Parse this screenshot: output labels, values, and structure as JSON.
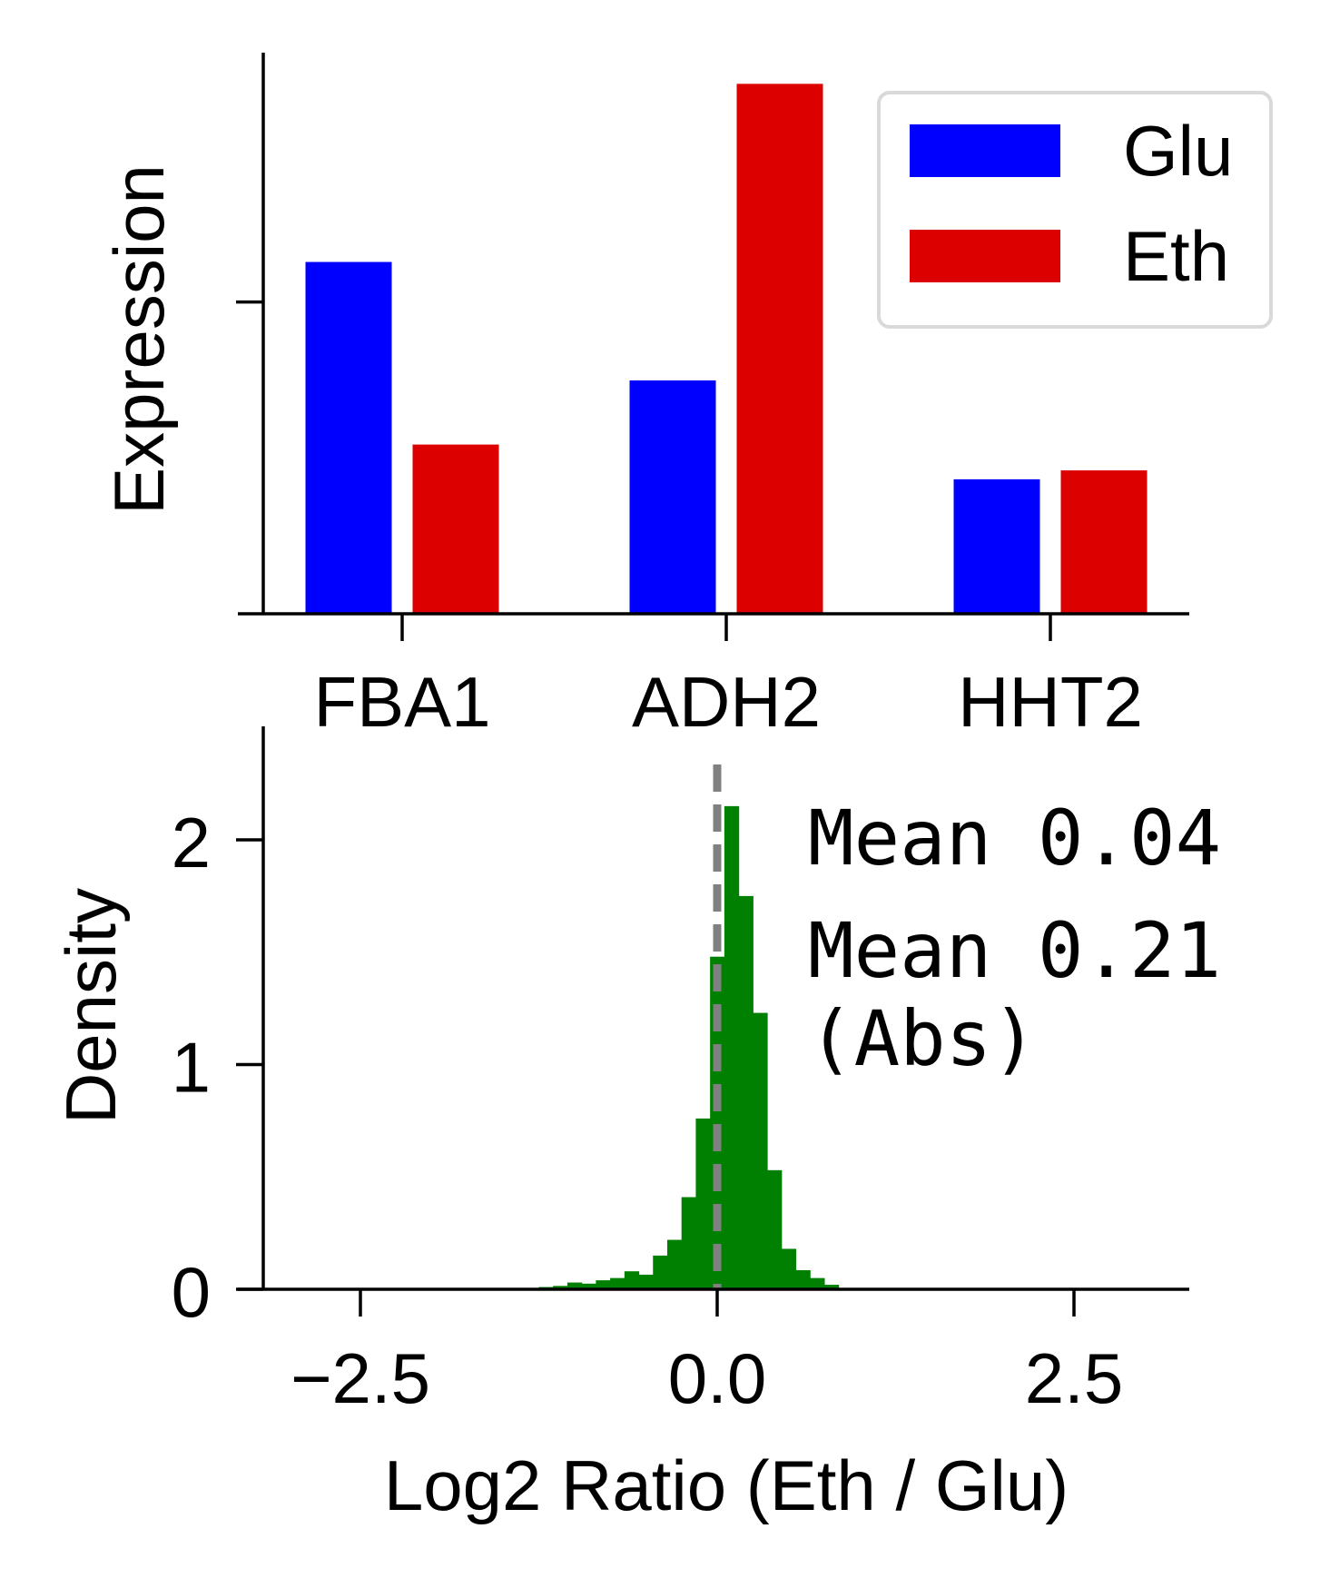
{
  "colors": {
    "glu": "#0000ff",
    "eth": "#dd0000",
    "hist": "#008000",
    "zero_line": "#808080",
    "axis": "#000000",
    "legend_border": "#d9d9d9"
  },
  "chart_data": [
    {
      "type": "bar",
      "xlabel": "",
      "ylabel": "Expression",
      "categories": [
        "FBA1",
        "ADH2",
        "HHT2"
      ],
      "series": [
        {
          "name": "Glu",
          "color": "#0000ff",
          "values": [
            0.395,
            0.262,
            0.151
          ]
        },
        {
          "name": "Eth",
          "color": "#dd0000",
          "values": [
            0.19,
            0.595,
            0.161
          ]
        }
      ],
      "ylim": [
        0,
        0.63
      ],
      "yticks": [
        0.35
      ],
      "ytick_labels": [
        ""
      ],
      "legend": {
        "position": "top-right",
        "labels": [
          "Glu",
          "Eth"
        ]
      },
      "grid": false
    },
    {
      "type": "bar",
      "histogram": true,
      "xlabel": "Log2 Ratio (Eth / Glu)",
      "ylabel": "Density",
      "xlim": [
        -3.5,
        3.3
      ],
      "ylim": [
        0,
        2.5
      ],
      "xticks": [
        -2.5,
        0.0,
        2.5
      ],
      "xtick_labels": [
        "−2.5",
        "0.0",
        "2.5"
      ],
      "yticks": [
        0,
        1,
        2
      ],
      "ytick_labels": [
        "0",
        "1",
        "2"
      ],
      "bin_width": 0.1,
      "bins": [
        {
          "x": -1.4,
          "density": 0.005
        },
        {
          "x": -1.3,
          "density": 0.006
        },
        {
          "x": -1.2,
          "density": 0.01
        },
        {
          "x": -1.1,
          "density": 0.015
        },
        {
          "x": -1.0,
          "density": 0.03
        },
        {
          "x": -0.9,
          "density": 0.025
        },
        {
          "x": -0.8,
          "density": 0.04
        },
        {
          "x": -0.7,
          "density": 0.05
        },
        {
          "x": -0.6,
          "density": 0.08
        },
        {
          "x": -0.5,
          "density": 0.065
        },
        {
          "x": -0.4,
          "density": 0.15
        },
        {
          "x": -0.3,
          "density": 0.22
        },
        {
          "x": -0.2,
          "density": 0.41
        },
        {
          "x": -0.1,
          "density": 0.76
        },
        {
          "x": 0.0,
          "density": 1.48
        },
        {
          "x": 0.1,
          "density": 2.15
        },
        {
          "x": 0.2,
          "density": 1.75
        },
        {
          "x": 0.3,
          "density": 1.23
        },
        {
          "x": 0.4,
          "density": 0.53
        },
        {
          "x": 0.5,
          "density": 0.18
        },
        {
          "x": 0.6,
          "density": 0.085
        },
        {
          "x": 0.7,
          "density": 0.05
        },
        {
          "x": 0.8,
          "density": 0.02
        }
      ],
      "reference_line": {
        "x": 0.0,
        "style": "dashed"
      },
      "annotations": [
        "Mean 0.04",
        "Mean 0.21",
        "(Abs)"
      ],
      "grid": false
    }
  ]
}
